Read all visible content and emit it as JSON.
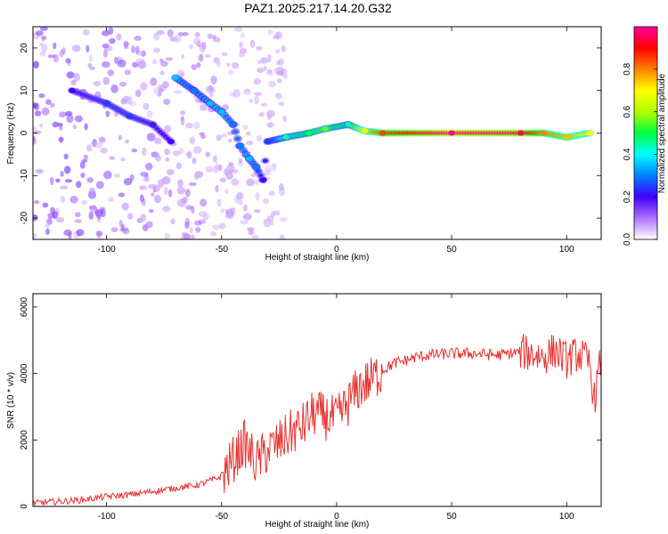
{
  "title": "PAZ1.2025.217.14.20.G32",
  "chart_data": [
    {
      "type": "heatmap",
      "xlabel": "Height of straight line (km)",
      "ylabel": "Frequency (Hz)",
      "xlim": [
        -132,
        115
      ],
      "ylim": [
        -25,
        25
      ],
      "xticks": [
        -100,
        -50,
        0,
        50,
        100
      ],
      "yticks": [
        -20,
        -10,
        0,
        10,
        20
      ],
      "colorbar": {
        "label": "Normalized spectral amplitude",
        "range": [
          0,
          1
        ],
        "ticks": [
          0.0,
          0.2,
          0.4,
          0.6,
          0.8
        ],
        "colormap": [
          "#ffffff",
          "#b070ff",
          "#4000ff",
          "#0080ff",
          "#00ffff",
          "#00ff40",
          "#b0ff00",
          "#ffff00",
          "#ff8000",
          "#ff0000",
          "#ff00a0"
        ]
      },
      "ridge": [
        {
          "x": -115,
          "y": 10,
          "v": 0.2
        },
        {
          "x": -100,
          "y": 7,
          "v": 0.25
        },
        {
          "x": -90,
          "y": 4,
          "v": 0.25
        },
        {
          "x": -80,
          "y": 2,
          "v": 0.22
        },
        {
          "x": -72,
          "y": -2,
          "v": 0.2
        },
        {
          "x": -70,
          "y": 13,
          "v": 0.35
        },
        {
          "x": -62,
          "y": 10,
          "v": 0.3
        },
        {
          "x": -55,
          "y": 7,
          "v": 0.35
        },
        {
          "x": -50,
          "y": 5,
          "v": 0.35
        },
        {
          "x": -45,
          "y": 2,
          "v": 0.3
        },
        {
          "x": -42,
          "y": -3,
          "v": 0.3
        },
        {
          "x": -38,
          "y": -6,
          "v": 0.35
        },
        {
          "x": -35,
          "y": -8,
          "v": 0.3
        },
        {
          "x": -32,
          "y": -11,
          "v": 0.2
        },
        {
          "x": -30,
          "y": -2,
          "v": 0.25
        },
        {
          "x": -22,
          "y": -1,
          "v": 0.45
        },
        {
          "x": -12,
          "y": 0,
          "v": 0.5
        },
        {
          "x": -5,
          "y": 1,
          "v": 0.55
        },
        {
          "x": 5,
          "y": 2,
          "v": 0.45
        },
        {
          "x": 12,
          "y": 0.5,
          "v": 0.7
        },
        {
          "x": 20,
          "y": 0,
          "v": 0.85
        },
        {
          "x": 50,
          "y": 0,
          "v": 1.0
        },
        {
          "x": 80,
          "y": 0,
          "v": 0.95
        },
        {
          "x": 90,
          "y": 0,
          "v": 0.8
        },
        {
          "x": 100,
          "y": -1,
          "v": 0.75
        },
        {
          "x": 110,
          "y": 0,
          "v": 0.7
        }
      ]
    },
    {
      "type": "line",
      "xlabel": "Height of straight line (km)",
      "ylabel": "SNR (10 * v/v)",
      "xlim": [
        -132,
        115
      ],
      "ylim": [
        0,
        6400
      ],
      "xticks": [
        -100,
        -50,
        0,
        50,
        100
      ],
      "yticks": [
        0,
        2000,
        4000,
        6000
      ],
      "color": "#e83030",
      "series": [
        {
          "x": [
            -132,
            -120,
            -110,
            -100,
            -90,
            -80,
            -70,
            -60,
            -50,
            -45,
            -40,
            -35,
            -30,
            -25,
            -20,
            -15,
            -10,
            -5,
            0,
            5,
            10,
            15,
            20,
            25,
            30,
            35,
            40,
            50,
            60,
            70,
            80,
            85,
            90,
            95,
            100,
            105,
            110,
            112,
            115
          ],
          "values": [
            100,
            150,
            200,
            300,
            350,
            450,
            550,
            650,
            900,
            1400,
            1900,
            1300,
            1700,
            1900,
            2200,
            2400,
            2800,
            2700,
            2600,
            3100,
            3600,
            3800,
            4100,
            4300,
            4400,
            4500,
            4550,
            4600,
            4600,
            4550,
            4650,
            4600,
            4500,
            4700,
            4400,
            4600,
            4300,
            3200,
            4500
          ]
        }
      ]
    }
  ]
}
